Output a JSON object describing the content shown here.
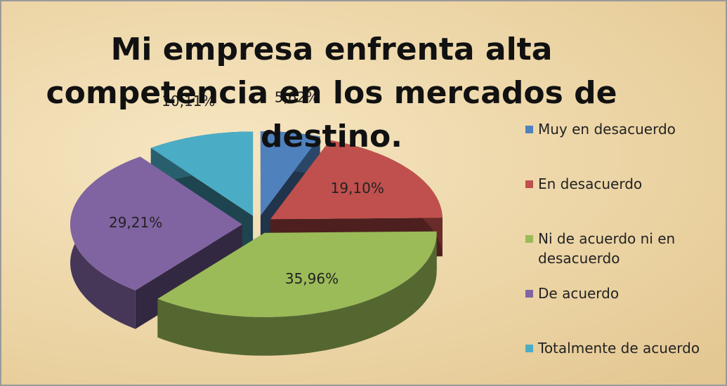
{
  "chart_data": {
    "type": "pie",
    "title": "Mi empresa enfrenta alta competencia en los mercados de destino.",
    "categories": [
      "Muy en desacuerdo",
      "En desacuerdo",
      "Ni de acuerdo ni en desacuerdo",
      "De acuerdo",
      "Totalmente de acuerdo"
    ],
    "values": [
      5.62,
      19.1,
      35.96,
      29.21,
      10.11
    ],
    "value_labels": [
      "5,62%",
      "19,10%",
      "35,96%",
      "29,21%",
      "10,11%"
    ],
    "colors": [
      "#4f81bd",
      "#c0504d",
      "#9bbb59",
      "#8064a2",
      "#4bacc6"
    ],
    "legend": "right"
  }
}
